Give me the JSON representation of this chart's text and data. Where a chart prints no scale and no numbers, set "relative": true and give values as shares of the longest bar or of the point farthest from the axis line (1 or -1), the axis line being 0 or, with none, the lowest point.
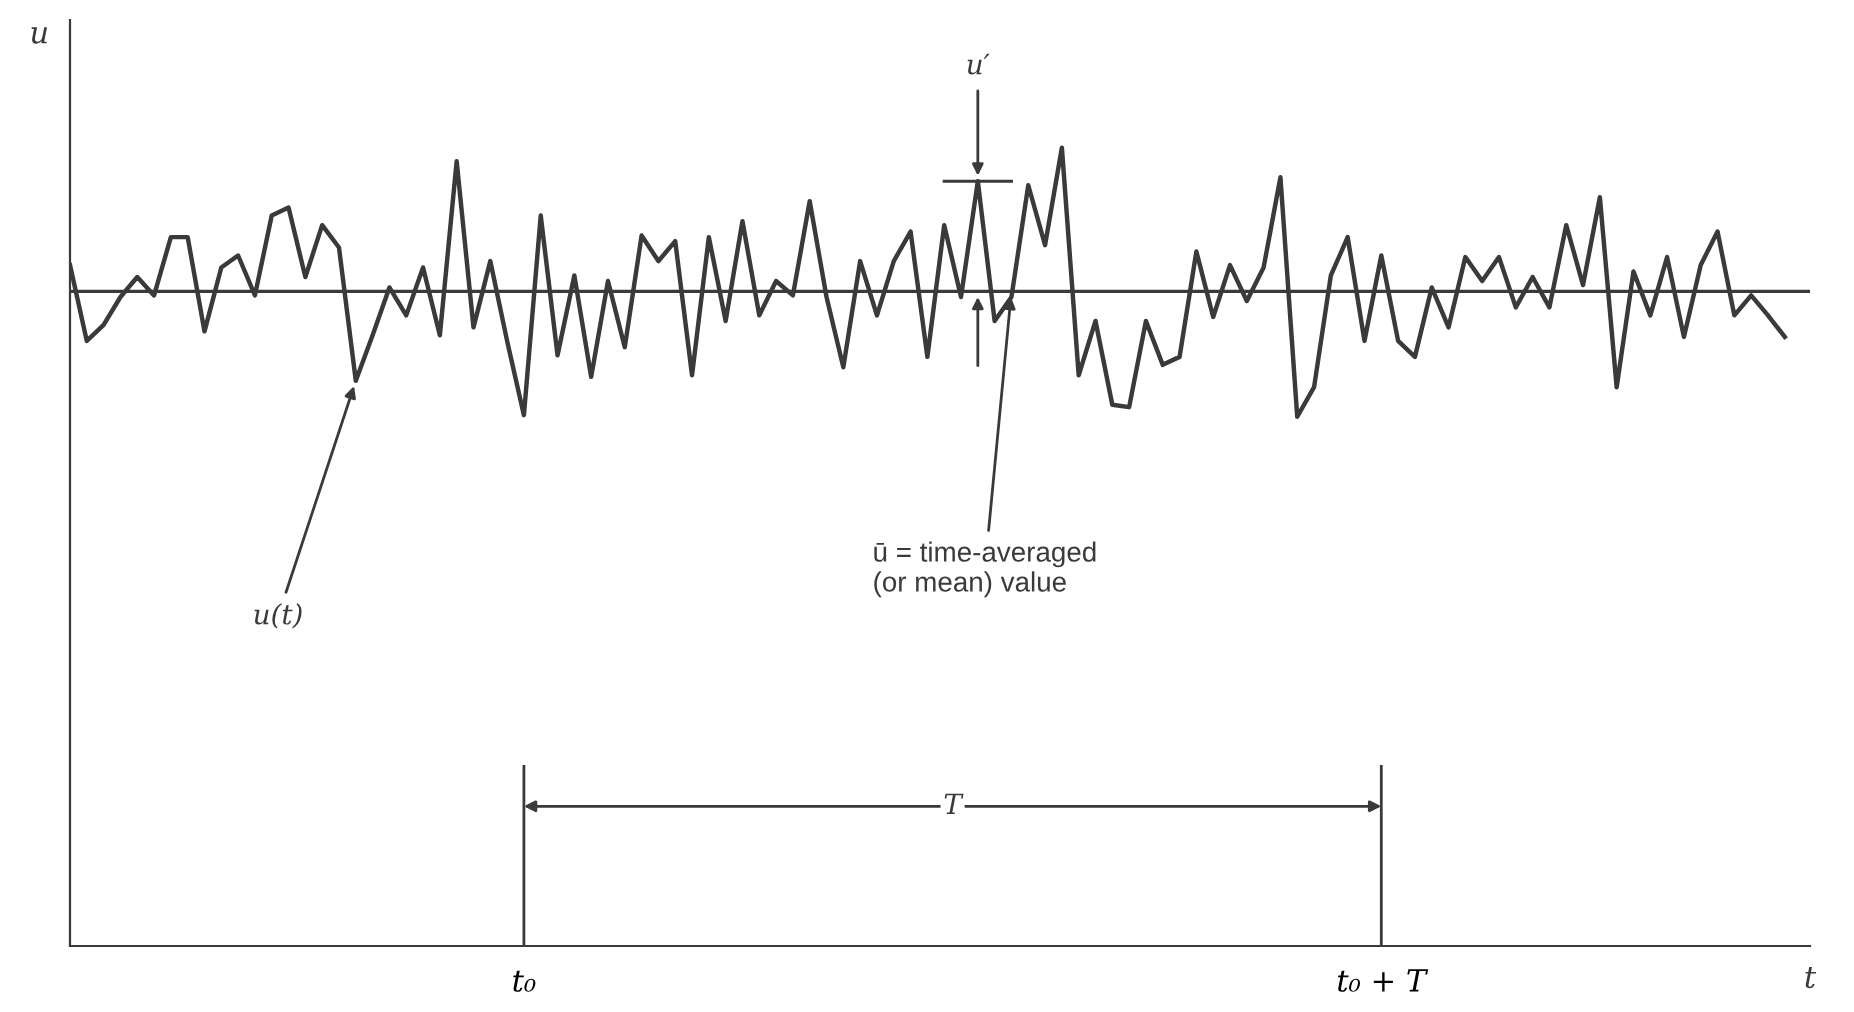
{
  "chart_data": {
    "type": "line",
    "relative": true,
    "xlabel": "t",
    "ylabel": "u",
    "categories": [
      null,
      null,
      null,
      null,
      null,
      null,
      null,
      null,
      null,
      null,
      null,
      null,
      null,
      null,
      null,
      null,
      null,
      null,
      null,
      null,
      null,
      null,
      null,
      null,
      null,
      null,
      null,
      "t₀",
      null,
      null,
      null,
      null,
      null,
      null,
      null,
      null,
      null,
      null,
      null,
      null,
      null,
      null,
      null,
      null,
      null,
      null,
      null,
      null,
      null,
      null,
      null,
      null,
      null,
      null,
      null,
      null,
      null,
      null,
      null,
      null,
      null,
      null,
      null,
      null,
      null,
      null,
      null,
      null,
      null,
      null,
      null,
      null,
      null,
      null,
      null,
      null,
      null,
      null,
      "t₀ + T",
      null,
      null,
      null,
      null,
      null,
      null,
      null,
      null,
      null,
      null,
      null,
      null,
      null,
      null,
      null,
      null,
      null,
      null,
      null,
      null,
      null,
      null,
      null,
      null
    ],
    "series": [
      {
        "color": "#3a3a3a",
        "values": [
          0.853,
          0.758,
          0.778,
          0.813,
          0.838,
          0.815,
          0.888,
          0.888,
          0.77,
          0.85,
          0.865,
          0.815,
          0.915,
          0.925,
          0.838,
          0.903,
          0.875,
          0.708,
          0.765,
          0.825,
          0.79,
          0.85,
          0.765,
          0.983,
          0.775,
          0.858,
          0.758,
          0.665,
          0.915,
          0.74,
          0.84,
          0.713,
          0.833,
          0.75,
          0.89,
          0.858,
          0.883,
          0.715,
          0.888,
          0.783,
          0.908,
          0.79,
          0.833,
          0.815,
          0.933,
          0.813,
          0.725,
          0.858,
          0.79,
          0.858,
          0.895,
          0.738,
          0.903,
          0.813,
          0.958,
          0.783,
          0.813,
          0.953,
          0.878,
          1.0,
          0.715,
          0.783,
          0.678,
          0.675,
          0.783,
          0.728,
          0.738,
          0.87,
          0.788,
          0.853,
          0.808,
          0.85,
          0.963,
          0.663,
          0.7,
          0.84,
          0.888,
          0.758,
          0.865,
          0.758,
          0.738,
          0.825,
          0.775,
          0.863,
          0.833,
          0.863,
          0.8,
          0.838,
          0.8,
          0.903,
          0.828,
          0.938,
          0.7,
          0.845,
          0.79,
          0.863,
          0.763,
          0.853,
          0.895,
          0.79,
          0.815,
          0.79,
          0.763
        ]
      }
    ],
    "ref_lines": [
      {
        "axis": "y",
        "value": 0.82,
        "color": "#3a3a3a"
      }
    ],
    "annotations": [
      "u(t)",
      "ū = time-averaged\n(or mean) value",
      "u′",
      "T"
    ],
    "grid": false,
    "marker": "none",
    "line_style": "solid"
  }
}
